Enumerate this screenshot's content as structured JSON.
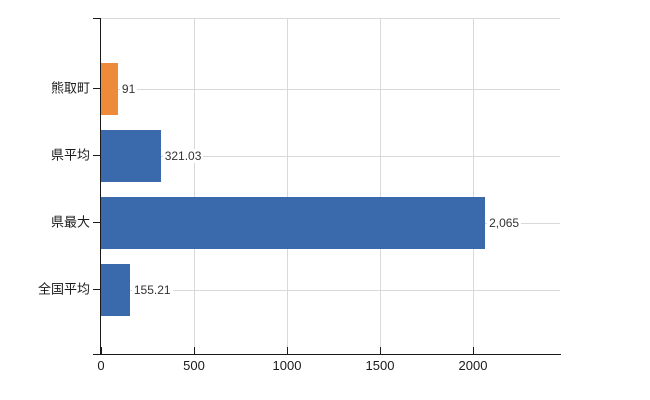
{
  "chart_data": {
    "type": "bar",
    "orientation": "horizontal",
    "title": "",
    "xlabel": "",
    "ylabel": "",
    "categories": [
      "熊取町",
      "県平均",
      "県最大",
      "全国平均"
    ],
    "values": [
      91,
      321.03,
      2065,
      155.21
    ],
    "value_labels": [
      "91",
      "321.03",
      "2,065",
      "155.21"
    ],
    "bar_colors": [
      "#EE8B3A",
      "#3A6AAB",
      "#3A6AAB",
      "#3A6AAB"
    ],
    "x_ticks": [
      0,
      500,
      1000,
      1500,
      2000
    ],
    "xlim": [
      0,
      2468
    ],
    "grid": true,
    "legend": "none",
    "colors": {
      "grid": "#d9d9d9",
      "axis": "#1a1a1a",
      "value_label_text": "#333333",
      "axis_label_text": "#1a1a1a",
      "background": "#ffffff"
    }
  }
}
